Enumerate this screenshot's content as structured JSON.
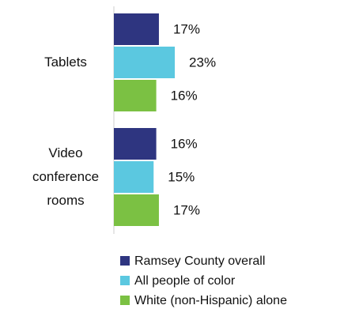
{
  "chart_data": {
    "type": "bar",
    "orientation": "horizontal",
    "categories": [
      "Tablets",
      "Video conference rooms"
    ],
    "series": [
      {
        "name": "Ramsey County overall",
        "color": "#2e3580",
        "values": [
          17,
          16
        ],
        "value_labels": [
          "17%",
          "16%"
        ]
      },
      {
        "name": "All people of color",
        "color": "#5bc8e0",
        "values": [
          23,
          15
        ],
        "value_labels": [
          "23%",
          "15%"
        ]
      },
      {
        "name": "White (non-Hispanic) alone",
        "color": "#7bc143",
        "values": [
          16,
          17
        ],
        "value_labels": [
          "16%",
          "17%"
        ]
      }
    ],
    "legend": "bottom"
  }
}
